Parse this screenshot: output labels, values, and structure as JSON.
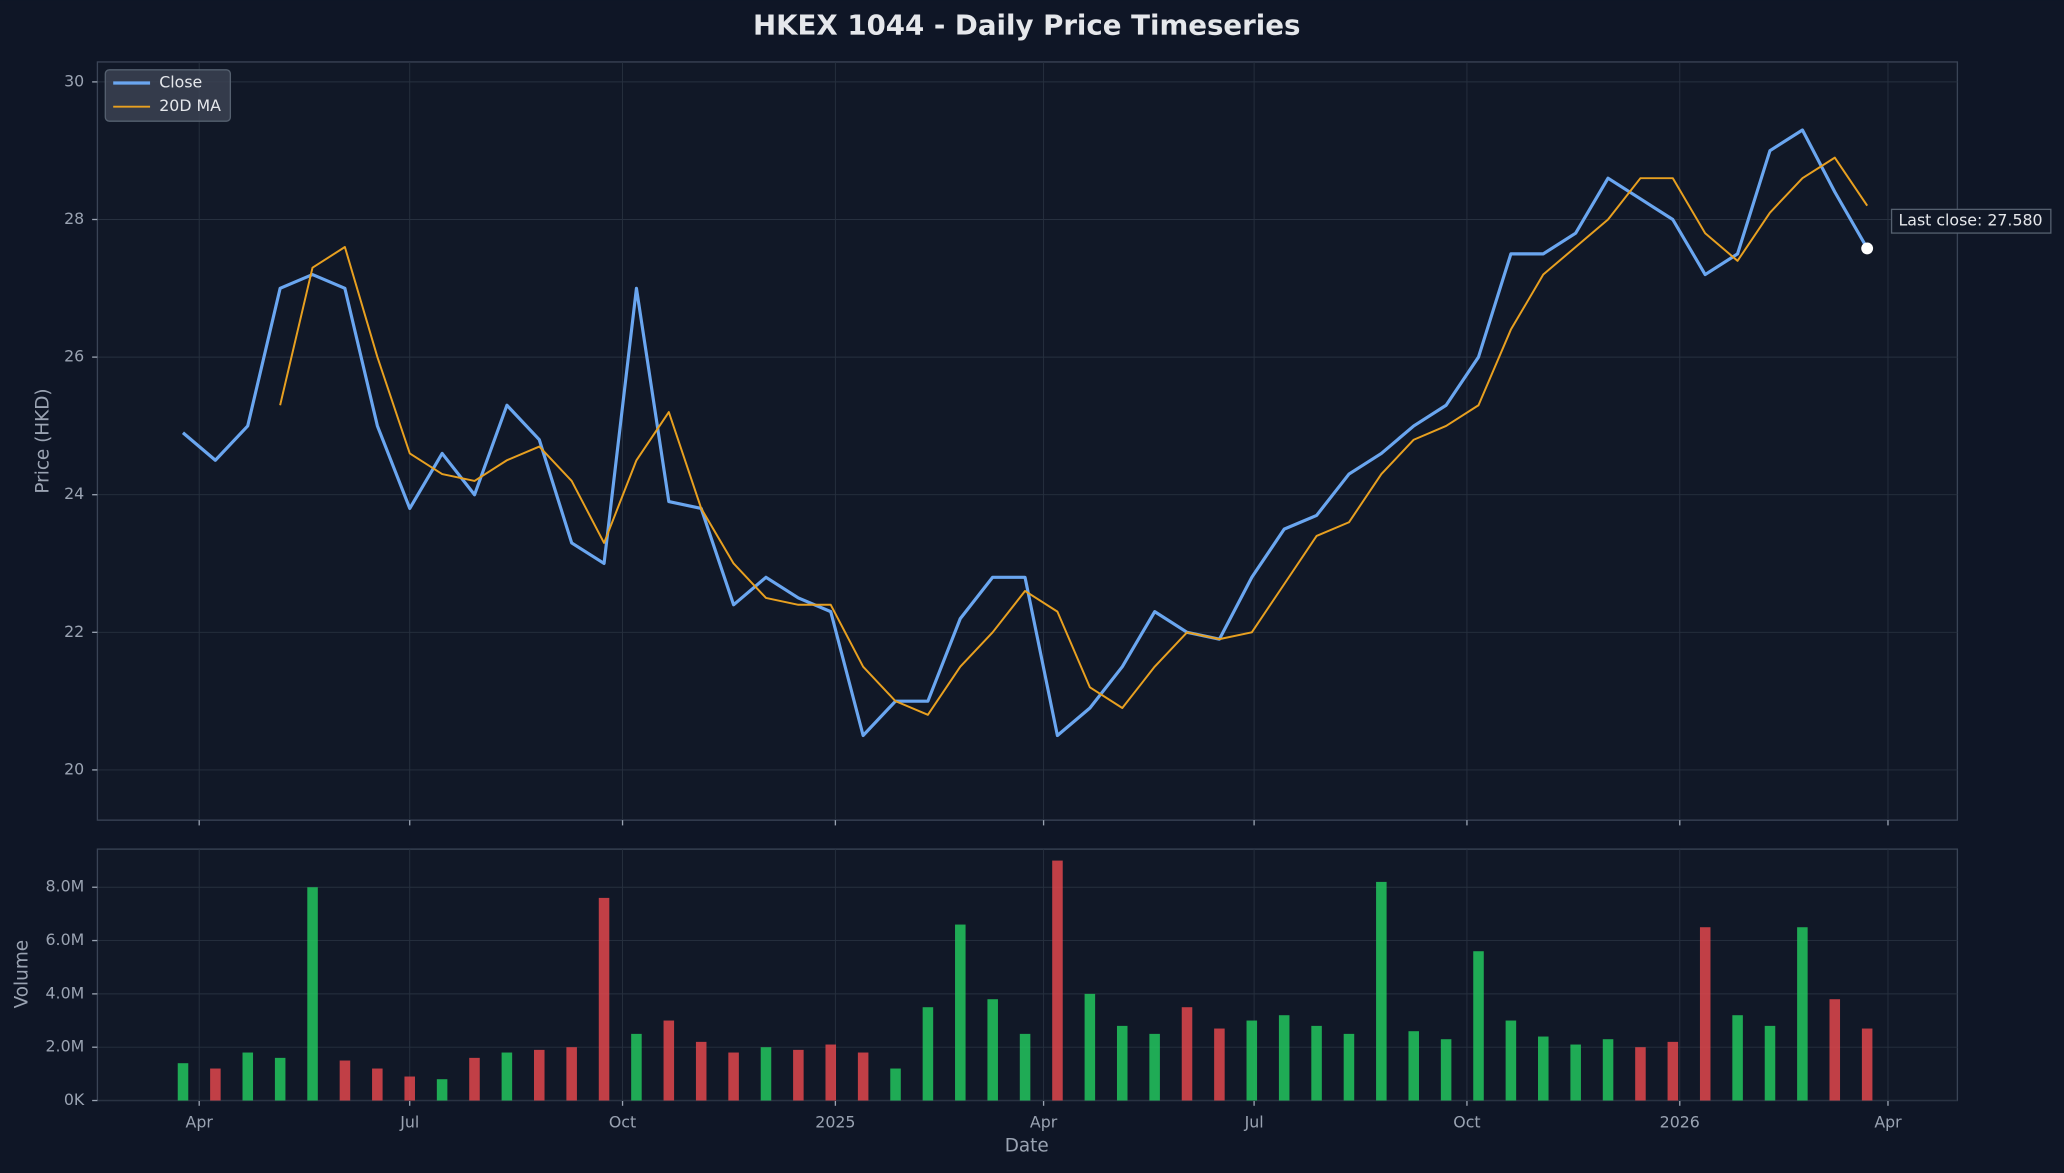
{
  "chart_data": [
    {
      "type": "line",
      "title": "HKEX 1044 - Daily Price Timeseries",
      "y_label": "Price (HKD)",
      "annotation": "Last close: 27.580",
      "x": [
        "2024-03-25",
        "2024-04-08",
        "2024-04-22",
        "2024-05-06",
        "2024-05-20",
        "2024-06-03",
        "2024-06-17",
        "2024-07-01",
        "2024-07-15",
        "2024-07-29",
        "2024-08-12",
        "2024-08-26",
        "2024-09-09",
        "2024-09-23",
        "2024-10-07",
        "2024-10-21",
        "2024-11-04",
        "2024-11-18",
        "2024-12-02",
        "2024-12-16",
        "2024-12-30",
        "2025-01-13",
        "2025-01-27",
        "2025-02-10",
        "2025-02-24",
        "2025-03-10",
        "2025-03-24",
        "2025-04-07",
        "2025-04-21",
        "2025-05-05",
        "2025-05-19",
        "2025-06-02",
        "2025-06-16",
        "2025-06-30",
        "2025-07-14",
        "2025-07-28",
        "2025-08-11",
        "2025-08-25",
        "2025-09-08",
        "2025-09-22",
        "2025-10-06",
        "2025-10-20",
        "2025-11-03",
        "2025-11-17",
        "2025-12-01",
        "2025-12-15",
        "2025-12-29",
        "2026-01-12",
        "2026-01-26",
        "2026-02-09",
        "2026-02-23",
        "2026-03-09",
        "2026-03-23"
      ],
      "series": [
        {
          "name": "Close",
          "color": "#6aa6f0",
          "values": [
            24.9,
            24.5,
            25.0,
            27.0,
            27.2,
            27.0,
            25.0,
            23.8,
            24.6,
            24.0,
            25.3,
            24.8,
            23.3,
            23.0,
            27.0,
            23.9,
            23.8,
            22.4,
            22.8,
            22.5,
            22.3,
            20.5,
            21.0,
            21.0,
            22.2,
            22.8,
            22.8,
            20.5,
            20.9,
            21.5,
            22.3,
            22.0,
            21.9,
            22.8,
            23.5,
            23.7,
            24.3,
            24.6,
            25.0,
            25.3,
            26.0,
            27.5,
            27.5,
            27.8,
            28.6,
            28.3,
            28.0,
            27.2,
            27.5,
            29.0,
            29.3,
            28.4,
            27.58
          ]
        },
        {
          "name": "20D MA",
          "color": "#e8a020",
          "values": [
            null,
            null,
            null,
            25.3,
            27.3,
            27.6,
            26.0,
            24.6,
            24.3,
            24.2,
            24.5,
            24.7,
            24.2,
            23.3,
            24.5,
            25.2,
            23.8,
            23.0,
            22.5,
            22.4,
            22.4,
            21.5,
            21.0,
            20.8,
            21.5,
            22.0,
            22.6,
            22.3,
            21.2,
            20.9,
            21.5,
            22.0,
            21.9,
            22.0,
            22.7,
            23.4,
            23.6,
            24.3,
            24.8,
            25.0,
            25.3,
            26.4,
            27.2,
            27.6,
            28.0,
            28.6,
            28.6,
            27.8,
            27.4,
            28.1,
            28.6,
            28.9,
            28.2
          ]
        }
      ],
      "xlim": [
        "2024-02-17",
        "2026-05-01"
      ],
      "ylim": [
        19.27,
        30.29
      ],
      "yticks": [
        20,
        22,
        24,
        26,
        28,
        30
      ],
      "grid": true,
      "legend": "upper left"
    },
    {
      "type": "bar",
      "x_label": "Date",
      "y_label": "Volume",
      "x": [
        "2024-03-25",
        "2024-04-08",
        "2024-04-22",
        "2024-05-06",
        "2024-05-20",
        "2024-06-03",
        "2024-06-17",
        "2024-07-01",
        "2024-07-15",
        "2024-07-29",
        "2024-08-12",
        "2024-08-26",
        "2024-09-09",
        "2024-09-23",
        "2024-10-07",
        "2024-10-21",
        "2024-11-04",
        "2024-11-18",
        "2024-12-02",
        "2024-12-16",
        "2024-12-30",
        "2025-01-13",
        "2025-01-27",
        "2025-02-10",
        "2025-02-24",
        "2025-03-10",
        "2025-03-24",
        "2025-04-07",
        "2025-04-21",
        "2025-05-05",
        "2025-05-19",
        "2025-06-02",
        "2025-06-16",
        "2025-06-30",
        "2025-07-14",
        "2025-07-28",
        "2025-08-11",
        "2025-08-25",
        "2025-09-08",
        "2025-09-22",
        "2025-10-06",
        "2025-10-20",
        "2025-11-03",
        "2025-11-17",
        "2025-12-01",
        "2025-12-15",
        "2025-12-29",
        "2026-01-12",
        "2026-01-26",
        "2026-02-09",
        "2026-02-23",
        "2026-03-09",
        "2026-03-23"
      ],
      "values": [
        1400000,
        1200000,
        1800000,
        1600000,
        8000000,
        1500000,
        1200000,
        900000,
        800000,
        1600000,
        1800000,
        1900000,
        2000000,
        7600000,
        2500000,
        3000000,
        2200000,
        1800000,
        2000000,
        1900000,
        2100000,
        1800000,
        1200000,
        3500000,
        6600000,
        3800000,
        2500000,
        9000000,
        4000000,
        2800000,
        2500000,
        3500000,
        2700000,
        3000000,
        3200000,
        2800000,
        2500000,
        8200000,
        2600000,
        2300000,
        5600000,
        3000000,
        2400000,
        2100000,
        2300000,
        2000000,
        2200000,
        6500000,
        3200000,
        2800000,
        6500000,
        3800000,
        2700000
      ],
      "colors": [
        "#22c55e",
        "#e0474c",
        "#22c55e",
        "#22c55e",
        "#22c55e",
        "#e0474c",
        "#e0474c",
        "#e0474c",
        "#22c55e",
        "#e0474c",
        "#22c55e",
        "#e0474c",
        "#e0474c",
        "#e0474c",
        "#22c55e",
        "#e0474c",
        "#e0474c",
        "#e0474c",
        "#22c55e",
        "#e0474c",
        "#e0474c",
        "#e0474c",
        "#22c55e",
        "#22c55e",
        "#22c55e",
        "#22c55e",
        "#22c55e",
        "#e0474c",
        "#22c55e",
        "#22c55e",
        "#22c55e",
        "#e0474c",
        "#e0474c",
        "#22c55e",
        "#22c55e",
        "#22c55e",
        "#22c55e",
        "#22c55e",
        "#22c55e",
        "#22c55e",
        "#22c55e",
        "#22c55e",
        "#22c55e",
        "#22c55e",
        "#22c55e",
        "#e0474c",
        "#e0474c",
        "#e0474c",
        "#22c55e",
        "#22c55e",
        "#22c55e",
        "#e0474c",
        "#e0474c"
      ],
      "xlim": [
        "2024-02-17",
        "2026-05-01"
      ],
      "xticks": [
        {
          "value": "2024-04-01",
          "label": "Apr"
        },
        {
          "value": "2024-07-01",
          "label": "Jul"
        },
        {
          "value": "2024-10-01",
          "label": "Oct"
        },
        {
          "value": "2025-01-01",
          "label": "2025"
        },
        {
          "value": "2025-04-01",
          "label": "Apr"
        },
        {
          "value": "2025-07-01",
          "label": "Jul"
        },
        {
          "value": "2025-10-01",
          "label": "Oct"
        },
        {
          "value": "2026-01-01",
          "label": "2026"
        },
        {
          "value": "2026-04-01",
          "label": "Apr"
        }
      ],
      "ylim": [
        0,
        9430000
      ],
      "yticks": [
        {
          "value": 0,
          "label": "0K"
        },
        {
          "value": 2000000,
          "label": "2.0M"
        },
        {
          "value": 4000000,
          "label": "4.0M"
        },
        {
          "value": 6000000,
          "label": "6.0M"
        },
        {
          "value": 8000000,
          "label": "8.0M"
        }
      ],
      "grid": true
    }
  ]
}
